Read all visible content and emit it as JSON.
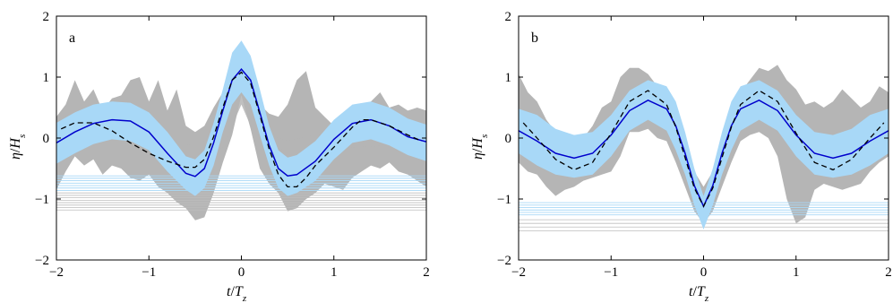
{
  "colors": {
    "envelope_gray": "#b5b5b5",
    "gray_line": "#bdbdbd",
    "band_blue": "#a8d8f7",
    "blue_line": "#a8d8f7",
    "mean_line": "#0000cc",
    "dashed_line": "#000000",
    "axis": "#000000"
  },
  "chart_data": [
    {
      "panel": "a",
      "type": "line",
      "xlabel": "t/T_z",
      "ylabel": "η/H_s",
      "xlim": [
        -2,
        2
      ],
      "ylim": [
        -2,
        2
      ],
      "xticks": [
        -2,
        -1,
        0,
        1,
        2
      ],
      "yticks": [
        -2,
        -1,
        0,
        1,
        2
      ],
      "grid": false,
      "series": [
        {
          "role": "mean (solid blue)",
          "x": [
            -2,
            -1.8,
            -1.6,
            -1.4,
            -1.2,
            -1.0,
            -0.8,
            -0.6,
            -0.5,
            -0.4,
            -0.3,
            -0.2,
            -0.1,
            0,
            0.1,
            0.2,
            0.3,
            0.4,
            0.5,
            0.6,
            0.8,
            1.0,
            1.2,
            1.4,
            1.6,
            1.8,
            2.0
          ],
          "y": [
            -0.08,
            0.1,
            0.24,
            0.3,
            0.28,
            0.1,
            -0.25,
            -0.58,
            -0.63,
            -0.5,
            -0.08,
            0.45,
            0.95,
            1.13,
            0.95,
            0.42,
            -0.12,
            -0.5,
            -0.62,
            -0.6,
            -0.38,
            -0.02,
            0.24,
            0.3,
            0.2,
            0.02,
            -0.06
          ]
        },
        {
          "role": "dashed (black)",
          "x": [
            -1.95,
            -1.8,
            -1.6,
            -1.4,
            -1.2,
            -1.0,
            -0.8,
            -0.6,
            -0.5,
            -0.4,
            -0.3,
            -0.2,
            -0.1,
            0,
            0.1,
            0.2,
            0.3,
            0.4,
            0.5,
            0.6,
            0.7,
            0.8,
            1.0,
            1.2,
            1.3,
            1.4,
            1.6,
            1.8,
            1.95
          ],
          "y": [
            0.15,
            0.25,
            0.25,
            0.12,
            -0.08,
            -0.25,
            -0.38,
            -0.48,
            -0.48,
            -0.35,
            0.02,
            0.5,
            0.95,
            1.08,
            0.9,
            0.38,
            -0.18,
            -0.6,
            -0.8,
            -0.8,
            -0.65,
            -0.45,
            -0.15,
            0.18,
            0.3,
            0.3,
            0.2,
            0.05,
            -0.05
          ]
        }
      ],
      "band": {
        "x": [
          -2,
          -1.8,
          -1.6,
          -1.4,
          -1.2,
          -1.0,
          -0.8,
          -0.6,
          -0.5,
          -0.4,
          -0.3,
          -0.2,
          -0.1,
          0,
          0.1,
          0.2,
          0.3,
          0.4,
          0.5,
          0.6,
          0.8,
          1.0,
          1.2,
          1.4,
          1.6,
          1.8,
          2.0
        ],
        "upper": [
          0.25,
          0.42,
          0.55,
          0.6,
          0.58,
          0.42,
          0.1,
          -0.3,
          -0.35,
          -0.2,
          0.25,
          0.8,
          1.4,
          1.6,
          1.35,
          0.8,
          0.2,
          -0.2,
          -0.32,
          -0.28,
          -0.05,
          0.3,
          0.55,
          0.6,
          0.5,
          0.32,
          0.22
        ],
        "lower": [
          -0.42,
          -0.25,
          -0.1,
          -0.02,
          -0.05,
          -0.2,
          -0.55,
          -0.85,
          -0.95,
          -0.82,
          -0.45,
          0.1,
          0.55,
          0.75,
          0.55,
          0.05,
          -0.45,
          -0.82,
          -0.95,
          -0.9,
          -0.7,
          -0.35,
          -0.08,
          -0.02,
          -0.12,
          -0.28,
          -0.38
        ]
      },
      "gray_envelope": {
        "x": [
          -2,
          -1.9,
          -1.8,
          -1.7,
          -1.6,
          -1.5,
          -1.4,
          -1.3,
          -1.2,
          -1.1,
          -1.0,
          -0.9,
          -0.8,
          -0.7,
          -0.6,
          -0.5,
          -0.4,
          -0.3,
          -0.2,
          -0.1,
          0,
          0.1,
          0.2,
          0.3,
          0.4,
          0.5,
          0.6,
          0.7,
          0.8,
          0.9,
          1.0,
          1.1,
          1.2,
          1.3,
          1.4,
          1.5,
          1.6,
          1.7,
          1.8,
          1.9,
          2.0
        ],
        "upper": [
          0.35,
          0.55,
          0.95,
          0.6,
          0.8,
          0.45,
          0.65,
          0.7,
          0.95,
          1.0,
          0.6,
          0.95,
          0.45,
          0.8,
          0.2,
          0.1,
          0.2,
          0.5,
          0.75,
          1.1,
          1.5,
          1.1,
          0.55,
          0.4,
          0.35,
          0.55,
          0.95,
          1.1,
          0.5,
          0.35,
          0.2,
          0.3,
          0.4,
          0.5,
          0.6,
          0.75,
          0.5,
          0.55,
          0.45,
          0.5,
          0.45
        ],
        "lower": [
          -0.85,
          -0.55,
          -0.3,
          -0.45,
          -0.35,
          -0.6,
          -0.45,
          -0.5,
          -0.65,
          -0.7,
          -0.6,
          -0.8,
          -0.9,
          -1.05,
          -1.15,
          -1.35,
          -1.3,
          -0.9,
          -0.4,
          0.05,
          0.7,
          0.15,
          -0.5,
          -0.75,
          -0.9,
          -1.2,
          -1.15,
          -1.0,
          -0.9,
          -0.75,
          -0.8,
          -0.85,
          -0.65,
          -0.55,
          -0.45,
          -0.5,
          -0.4,
          -0.55,
          -0.6,
          -0.7,
          -0.8
        ]
      },
      "gray_bump": {
        "x": [
          -0.6,
          -0.4,
          -0.2,
          -0.1,
          0,
          0.1,
          0.3,
          0.5,
          0.8,
          1.2,
          1.6,
          2.0
        ],
        "upper": [
          -0.12,
          -0.05,
          0.25,
          0.7,
          0.95,
          0.6,
          0.05,
          -0.05,
          0.05,
          0.08,
          0.08,
          0.05
        ],
        "lower": [
          -0.3,
          -0.3,
          -0.15,
          0.2,
          0.55,
          0.2,
          -0.15,
          -0.2,
          -0.2,
          -0.15,
          -0.12,
          -0.12
        ]
      },
      "blue_hlines": [
        -0.62,
        -0.66,
        -0.7,
        -0.74,
        -0.78,
        -0.82,
        -0.86
      ],
      "gray_hlines": [
        -0.9,
        -0.94,
        -0.98,
        -1.02,
        -1.06,
        -1.1,
        -1.14,
        -1.18
      ]
    },
    {
      "panel": "b",
      "type": "line",
      "xlabel": "t/T_z",
      "ylabel": "η/H_s",
      "xlim": [
        -2,
        2
      ],
      "ylim": [
        -2,
        2
      ],
      "xticks": [
        -2,
        -1,
        0,
        1,
        2
      ],
      "yticks": [
        -2,
        -1,
        0,
        1,
        2
      ],
      "grid": false,
      "series": [
        {
          "role": "mean (solid blue)",
          "x": [
            -2,
            -1.8,
            -1.6,
            -1.4,
            -1.2,
            -1.0,
            -0.8,
            -0.6,
            -0.4,
            -0.3,
            -0.2,
            -0.1,
            0,
            0.1,
            0.2,
            0.3,
            0.4,
            0.6,
            0.8,
            1.0,
            1.2,
            1.4,
            1.6,
            1.8,
            2.0
          ],
          "y": [
            0.12,
            -0.05,
            -0.25,
            -0.33,
            -0.25,
            0.05,
            0.45,
            0.62,
            0.48,
            0.2,
            -0.25,
            -0.78,
            -1.12,
            -0.78,
            -0.25,
            0.2,
            0.48,
            0.62,
            0.45,
            0.05,
            -0.25,
            -0.33,
            -0.25,
            -0.05,
            0.12
          ]
        },
        {
          "role": "dashed (black)",
          "x": [
            -1.95,
            -1.8,
            -1.6,
            -1.4,
            -1.2,
            -1.0,
            -0.8,
            -0.6,
            -0.4,
            -0.3,
            -0.2,
            -0.1,
            0,
            0.1,
            0.2,
            0.3,
            0.4,
            0.6,
            0.8,
            1.0,
            1.2,
            1.4,
            1.6,
            1.8,
            1.95
          ],
          "y": [
            0.25,
            0.0,
            -0.35,
            -0.52,
            -0.4,
            0.08,
            0.6,
            0.78,
            0.55,
            0.18,
            -0.32,
            -0.82,
            -1.12,
            -0.82,
            -0.32,
            0.18,
            0.55,
            0.78,
            0.6,
            0.08,
            -0.4,
            -0.52,
            -0.35,
            0.0,
            0.25
          ]
        }
      ],
      "band": {
        "x": [
          -2,
          -1.8,
          -1.6,
          -1.4,
          -1.2,
          -1.0,
          -0.8,
          -0.6,
          -0.4,
          -0.3,
          -0.2,
          -0.1,
          0,
          0.1,
          0.2,
          0.3,
          0.4,
          0.6,
          0.8,
          1.0,
          1.2,
          1.4,
          1.6,
          1.8,
          2.0
        ],
        "upper": [
          0.48,
          0.38,
          0.15,
          0.05,
          0.1,
          0.38,
          0.78,
          0.95,
          0.85,
          0.6,
          0.1,
          -0.5,
          -0.95,
          -0.5,
          0.1,
          0.6,
          0.85,
          0.95,
          0.78,
          0.38,
          0.1,
          0.05,
          0.15,
          0.38,
          0.48
        ],
        "lower": [
          -0.25,
          -0.45,
          -0.6,
          -0.65,
          -0.6,
          -0.3,
          0.12,
          0.3,
          0.12,
          -0.2,
          -0.6,
          -1.1,
          -1.5,
          -1.1,
          -0.6,
          -0.2,
          0.12,
          0.3,
          0.12,
          -0.3,
          -0.6,
          -0.65,
          -0.6,
          -0.45,
          -0.25
        ]
      },
      "gray_envelope": {
        "x": [
          -2,
          -1.9,
          -1.8,
          -1.7,
          -1.6,
          -1.5,
          -1.4,
          -1.3,
          -1.2,
          -1.1,
          -1.0,
          -0.9,
          -0.8,
          -0.7,
          -0.6,
          -0.5,
          -0.4,
          -0.3,
          -0.2,
          -0.1,
          0,
          0.1,
          0.2,
          0.3,
          0.4,
          0.5,
          0.6,
          0.7,
          0.8,
          0.9,
          1.0,
          1.1,
          1.2,
          1.3,
          1.4,
          1.5,
          1.6,
          1.7,
          1.8,
          1.9,
          2.0
        ],
        "upper": [
          1.05,
          0.75,
          0.6,
          0.3,
          0.1,
          0.05,
          0.05,
          0.0,
          0.2,
          0.5,
          0.6,
          1.0,
          1.15,
          1.15,
          1.05,
          0.85,
          0.65,
          0.2,
          -0.2,
          -0.55,
          -0.8,
          -0.55,
          -0.2,
          0.2,
          0.75,
          0.95,
          1.15,
          1.1,
          1.2,
          0.95,
          0.8,
          0.55,
          0.6,
          0.5,
          0.6,
          0.8,
          0.65,
          0.5,
          0.6,
          0.85,
          0.75
        ],
        "lower": [
          -0.4,
          -0.55,
          -0.6,
          -0.8,
          -0.95,
          -0.85,
          -0.8,
          -0.7,
          -0.65,
          -0.6,
          -0.55,
          -0.3,
          0.1,
          0.1,
          0.15,
          0.0,
          -0.05,
          -0.4,
          -0.8,
          -1.2,
          -1.4,
          -1.2,
          -0.8,
          -0.4,
          -0.05,
          0.05,
          0.1,
          0.0,
          -0.3,
          -1.0,
          -1.4,
          -1.3,
          -0.85,
          -0.75,
          -0.8,
          -0.85,
          -0.8,
          -0.75,
          -0.55,
          -0.4,
          -0.3
        ]
      },
      "gray_bump": null,
      "blue_hlines": [
        -1.06,
        -1.1,
        -1.14,
        -1.18,
        -1.22,
        -1.26
      ],
      "gray_hlines": [
        -1.34,
        -1.4,
        -1.46,
        -1.52
      ]
    }
  ],
  "panels": [
    {
      "label": "a",
      "xlabel_main": "t",
      "xlabel_sep": "/",
      "xlabel_var": "T",
      "xlabel_sub": "z",
      "ylabel_main": "η",
      "ylabel_sep": "/",
      "ylabel_var": "H",
      "ylabel_sub": "s"
    },
    {
      "label": "b",
      "xlabel_main": "t",
      "xlabel_sep": "/",
      "xlabel_var": "T",
      "xlabel_sub": "z",
      "ylabel_main": "η",
      "ylabel_sep": "/",
      "ylabel_var": "H",
      "ylabel_sub": "s"
    }
  ]
}
